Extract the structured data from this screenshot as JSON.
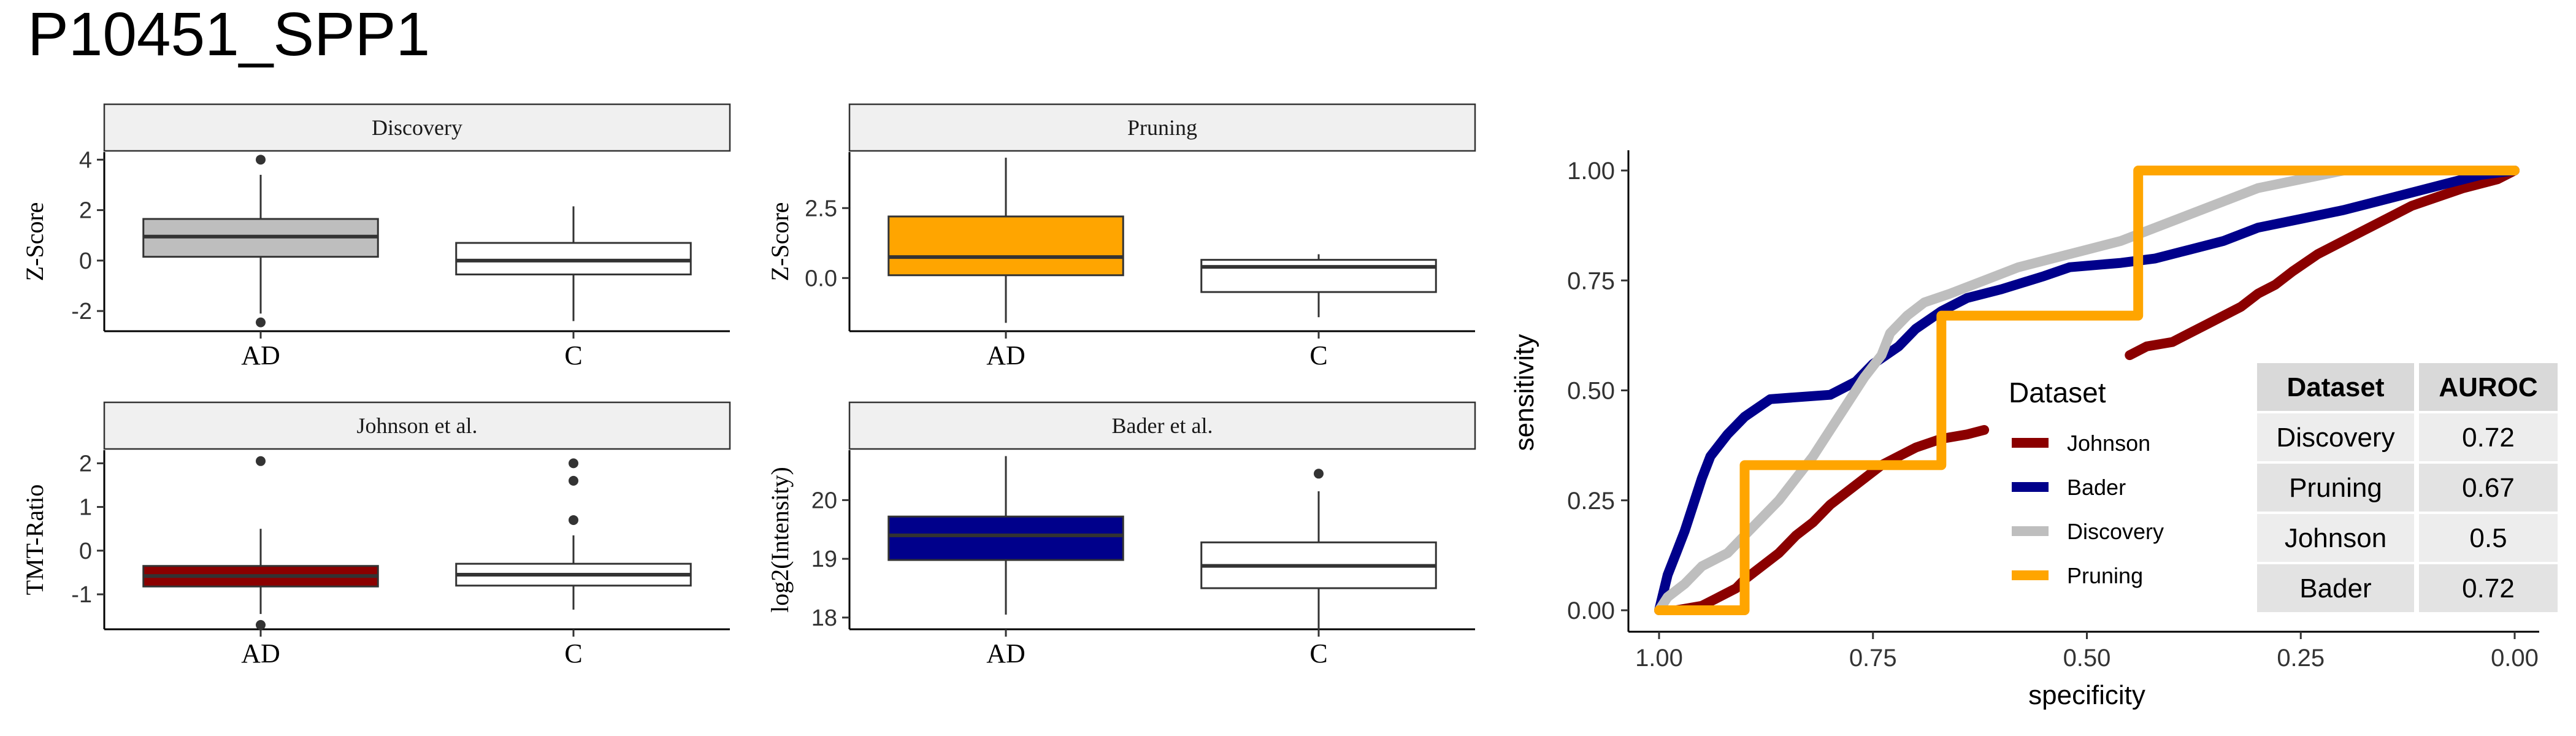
{
  "title": "P10451_SPP1",
  "colors": {
    "Discovery": "#BEBEBE",
    "Pruning": "#FFA500",
    "Johnson": "#8B0000",
    "Bader": "#00008B",
    "control": "#FFFFFF",
    "strip": "#F0F0F0"
  },
  "chart_data": [
    {
      "type": "box",
      "panel": "Discovery",
      "ylabel": "Z-Score",
      "ylim": [
        -2.8,
        4.3
      ],
      "yticks": [
        -2,
        0,
        2,
        4
      ],
      "categories": [
        "AD",
        "C"
      ],
      "boxes": [
        {
          "group": "AD",
          "fill": "#BEBEBE",
          "q1": 0.15,
          "median": 0.95,
          "q3": 1.65,
          "lower": -2.1,
          "upper": 3.4,
          "outliers": [
            4.0,
            -2.45
          ]
        },
        {
          "group": "C",
          "fill": "#FFFFFF",
          "q1": -0.55,
          "median": 0.0,
          "q3": 0.7,
          "lower": -2.4,
          "upper": 2.15,
          "outliers": []
        }
      ]
    },
    {
      "type": "box",
      "panel": "Pruning",
      "ylabel": "Z-Score",
      "ylim": [
        -1.9,
        4.5
      ],
      "yticks": [
        0.0,
        2.5
      ],
      "ytick_labels": [
        "0.0",
        "2.5"
      ],
      "categories": [
        "AD",
        "C"
      ],
      "boxes": [
        {
          "group": "AD",
          "fill": "#FFA500",
          "q1": 0.1,
          "median": 0.75,
          "q3": 2.2,
          "lower": -1.6,
          "upper": 4.3,
          "outliers": []
        },
        {
          "group": "C",
          "fill": "#FFFFFF",
          "q1": -0.5,
          "median": 0.4,
          "q3": 0.65,
          "lower": -1.4,
          "upper": 0.85,
          "outliers": []
        }
      ]
    },
    {
      "type": "box",
      "panel": "Johnson et al.",
      "ylabel": "TMT-Ratio",
      "ylim": [
        -1.8,
        2.3
      ],
      "yticks": [
        -1,
        0,
        1,
        2
      ],
      "categories": [
        "AD",
        "C"
      ],
      "boxes": [
        {
          "group": "AD",
          "fill": "#8B0000",
          "q1": -0.82,
          "median": -0.58,
          "q3": -0.35,
          "lower": -1.45,
          "upper": 0.5,
          "outliers": [
            2.05,
            -1.7
          ]
        },
        {
          "group": "C",
          "fill": "#FFFFFF",
          "q1": -0.8,
          "median": -0.55,
          "q3": -0.3,
          "lower": -1.35,
          "upper": 0.35,
          "outliers": [
            2.0,
            1.6,
            0.7
          ]
        }
      ]
    },
    {
      "type": "box",
      "panel": "Bader et al.",
      "ylabel": "log2(Intensity)",
      "ylim": [
        17.8,
        20.85
      ],
      "yticks": [
        18,
        19,
        20
      ],
      "categories": [
        "AD",
        "C"
      ],
      "boxes": [
        {
          "group": "AD",
          "fill": "#00008B",
          "q1": 18.98,
          "median": 19.4,
          "q3": 19.72,
          "lower": 18.05,
          "upper": 20.75,
          "outliers": []
        },
        {
          "group": "C",
          "fill": "#FFFFFF",
          "q1": 18.5,
          "median": 18.88,
          "q3": 19.28,
          "lower": 17.8,
          "upper": 20.15,
          "outliers": [
            20.45
          ]
        }
      ]
    },
    {
      "type": "line",
      "panel": "ROC",
      "xlabel": "specificity",
      "ylabel": "sensitivity",
      "xlim": [
        1.0,
        0.0
      ],
      "ylim": [
        0.0,
        1.0
      ],
      "xticks": [
        1.0,
        0.75,
        0.5,
        0.25,
        0.0
      ],
      "xtick_labels": [
        "1.00",
        "0.75",
        "0.50",
        "0.25",
        "0.00"
      ],
      "yticks": [
        0.0,
        0.25,
        0.5,
        0.75,
        1.0
      ],
      "ytick_labels": [
        "0.00",
        "0.25",
        "0.50",
        "0.75",
        "1.00"
      ],
      "legend_title": "Dataset",
      "legend_position": "center-right",
      "series": [
        {
          "name": "Johnson",
          "color": "#8B0000",
          "points": [
            [
              1.0,
              0.0
            ],
            [
              0.98,
              0.0
            ],
            [
              0.95,
              0.01
            ],
            [
              0.93,
              0.03
            ],
            [
              0.91,
              0.05
            ],
            [
              0.9,
              0.07
            ],
            [
              0.88,
              0.1
            ],
            [
              0.86,
              0.13
            ],
            [
              0.84,
              0.17
            ],
            [
              0.82,
              0.2
            ],
            [
              0.8,
              0.24
            ],
            [
              0.78,
              0.27
            ],
            [
              0.76,
              0.3
            ],
            [
              0.74,
              0.33
            ],
            [
              0.72,
              0.35
            ],
            [
              0.7,
              0.37
            ],
            [
              0.67,
              0.39
            ],
            [
              0.64,
              0.4
            ],
            [
              0.62,
              0.41
            ]
          ]
        },
        {
          "name": "Johnson",
          "color": "#8B0000",
          "points": [
            [
              0.45,
              0.58
            ],
            [
              0.43,
              0.6
            ],
            [
              0.4,
              0.61
            ],
            [
              0.38,
              0.63
            ],
            [
              0.36,
              0.65
            ],
            [
              0.34,
              0.67
            ],
            [
              0.32,
              0.69
            ],
            [
              0.3,
              0.72
            ],
            [
              0.28,
              0.74
            ],
            [
              0.26,
              0.77
            ],
            [
              0.23,
              0.81
            ],
            [
              0.2,
              0.84
            ],
            [
              0.17,
              0.87
            ],
            [
              0.14,
              0.9
            ],
            [
              0.12,
              0.92
            ],
            [
              0.09,
              0.94
            ],
            [
              0.06,
              0.96
            ],
            [
              0.02,
              0.98
            ],
            [
              0.0,
              1.0
            ]
          ]
        },
        {
          "name": "Bader",
          "color": "#00008B",
          "points": [
            [
              1.0,
              0.0
            ],
            [
              0.99,
              0.08
            ],
            [
              0.98,
              0.13
            ],
            [
              0.97,
              0.18
            ],
            [
              0.96,
              0.24
            ],
            [
              0.95,
              0.3
            ],
            [
              0.94,
              0.35
            ],
            [
              0.92,
              0.4
            ],
            [
              0.9,
              0.44
            ],
            [
              0.87,
              0.48
            ],
            [
              0.8,
              0.49
            ],
            [
              0.77,
              0.52
            ],
            [
              0.75,
              0.56
            ],
            [
              0.72,
              0.6
            ],
            [
              0.7,
              0.64
            ],
            [
              0.67,
              0.68
            ],
            [
              0.64,
              0.71
            ],
            [
              0.6,
              0.73
            ],
            [
              0.55,
              0.76
            ],
            [
              0.52,
              0.78
            ],
            [
              0.46,
              0.79
            ],
            [
              0.42,
              0.8
            ],
            [
              0.38,
              0.82
            ],
            [
              0.34,
              0.84
            ],
            [
              0.3,
              0.87
            ],
            [
              0.25,
              0.89
            ],
            [
              0.2,
              0.91
            ],
            [
              0.16,
              0.93
            ],
            [
              0.12,
              0.95
            ],
            [
              0.08,
              0.97
            ],
            [
              0.04,
              0.99
            ],
            [
              0.0,
              1.0
            ]
          ]
        },
        {
          "name": "Discovery",
          "color": "#BEBEBE",
          "points": [
            [
              1.0,
              0.0
            ],
            [
              0.99,
              0.03
            ],
            [
              0.97,
              0.06
            ],
            [
              0.95,
              0.1
            ],
            [
              0.92,
              0.13
            ],
            [
              0.9,
              0.17
            ],
            [
              0.88,
              0.21
            ],
            [
              0.86,
              0.25
            ],
            [
              0.84,
              0.3
            ],
            [
              0.82,
              0.35
            ],
            [
              0.8,
              0.41
            ],
            [
              0.78,
              0.47
            ],
            [
              0.76,
              0.53
            ],
            [
              0.74,
              0.58
            ],
            [
              0.73,
              0.63
            ],
            [
              0.71,
              0.67
            ],
            [
              0.69,
              0.7
            ],
            [
              0.66,
              0.72
            ],
            [
              0.62,
              0.75
            ],
            [
              0.58,
              0.78
            ],
            [
              0.54,
              0.8
            ],
            [
              0.5,
              0.82
            ],
            [
              0.46,
              0.84
            ],
            [
              0.42,
              0.87
            ],
            [
              0.38,
              0.9
            ],
            [
              0.34,
              0.93
            ],
            [
              0.3,
              0.96
            ],
            [
              0.25,
              0.98
            ],
            [
              0.2,
              1.0
            ],
            [
              0.0,
              1.0
            ]
          ]
        },
        {
          "name": "Pruning",
          "color": "#FFA500",
          "points": [
            [
              1.0,
              0.0
            ],
            [
              0.9,
              0.0
            ],
            [
              0.9,
              0.33
            ],
            [
              0.67,
              0.33
            ],
            [
              0.67,
              0.67
            ],
            [
              0.44,
              0.67
            ],
            [
              0.44,
              1.0
            ],
            [
              0.0,
              1.0
            ]
          ]
        }
      ]
    },
    {
      "type": "table",
      "panel": "AUROC",
      "columns": [
        "Dataset",
        "AUROC"
      ],
      "rows": [
        [
          "Discovery",
          "0.72"
        ],
        [
          "Pruning",
          "0.67"
        ],
        [
          "Johnson",
          "0.5"
        ],
        [
          "Bader",
          "0.72"
        ]
      ]
    }
  ]
}
